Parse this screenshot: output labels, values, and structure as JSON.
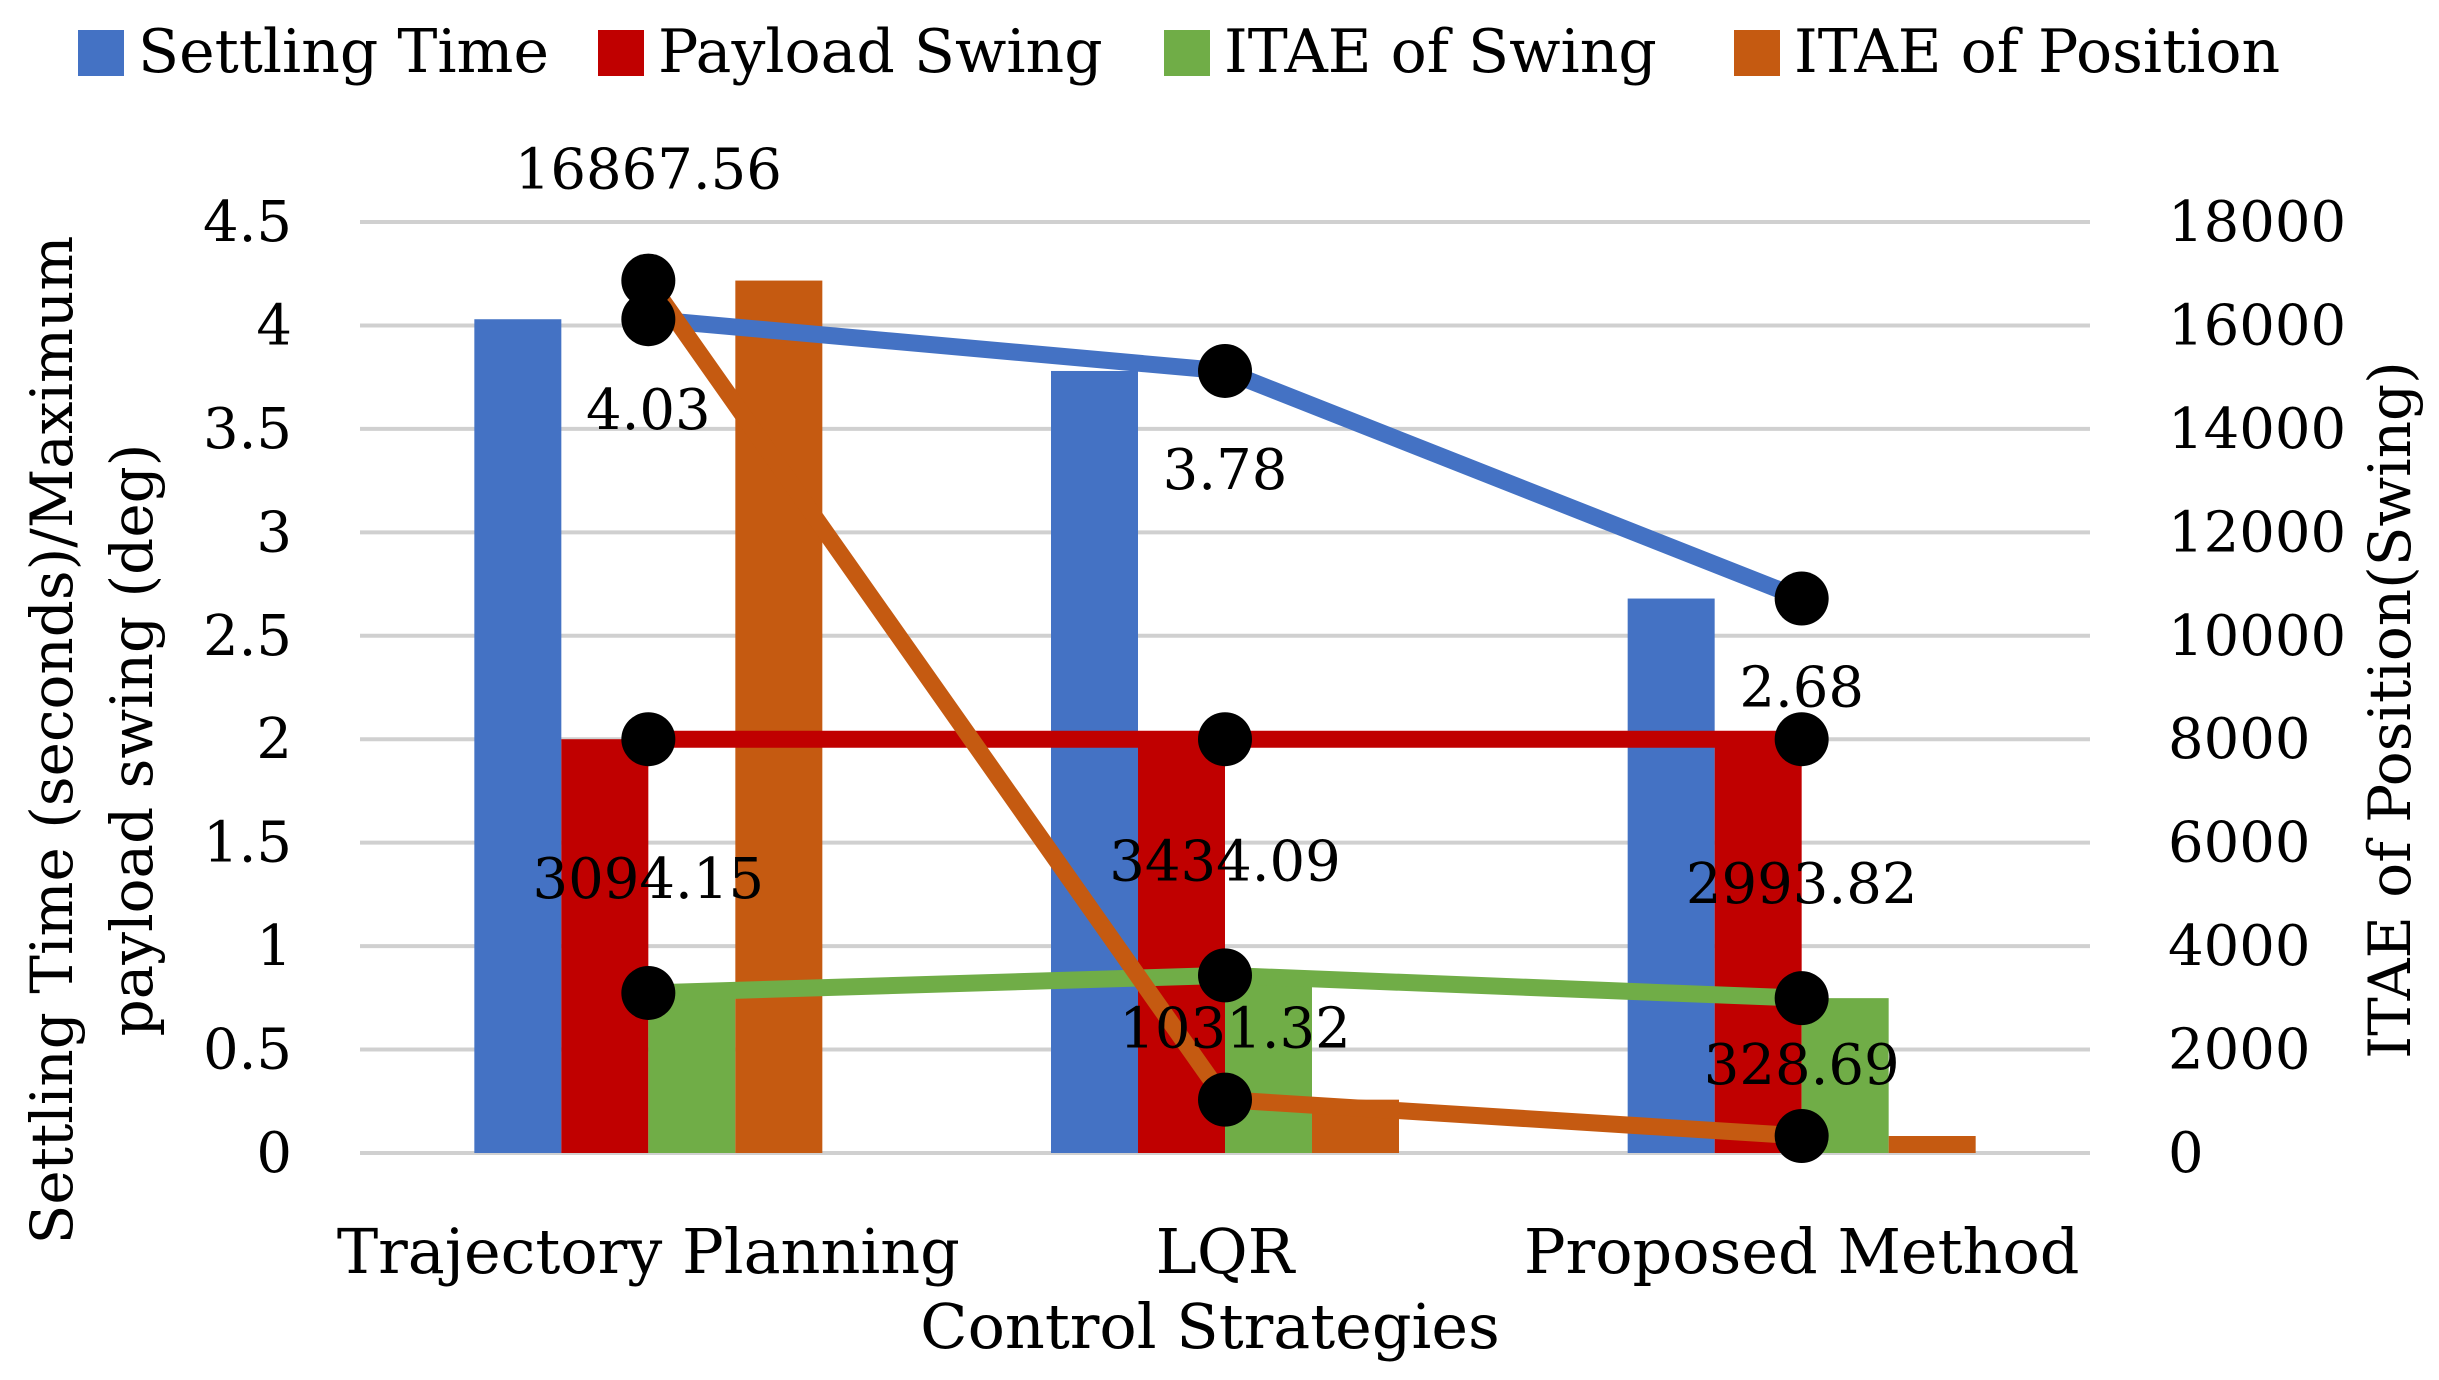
{
  "chart_data": {
    "type": "bar",
    "title": "",
    "xlabel": "Control  Strategies",
    "ylabel_left": [
      "Settling Time (seconds)/Maximum",
      "payload swing (deg)"
    ],
    "ylabel_right": "ITAE of Position(Swing)",
    "categories": [
      "Trajectory Planning",
      "LQR",
      "Proposed Method"
    ],
    "y_left": {
      "min": 0,
      "max": 4.5,
      "step": 0.5,
      "ticks": [
        "0",
        "0.5",
        "1",
        "1.5",
        "2",
        "2.5",
        "3",
        "3.5",
        "4",
        "4.5"
      ]
    },
    "y_right": {
      "min": 0,
      "max": 18000,
      "step": 2000,
      "ticks": [
        "0",
        "2000",
        "4000",
        "6000",
        "8000",
        "10000",
        "12000",
        "14000",
        "16000",
        "18000"
      ]
    },
    "grid": true,
    "legend_position": "top",
    "series": [
      {
        "name": "Settling Time",
        "color": "#4472C4",
        "axis": "left",
        "values": [
          4.03,
          3.78,
          2.68
        ],
        "labels": [
          "4.03",
          "3.78",
          "2.68"
        ]
      },
      {
        "name": "Payload Swing",
        "color": "#C00000",
        "axis": "left",
        "values": [
          2.0,
          2.0,
          2.0
        ],
        "labels": []
      },
      {
        "name": "ITAE of Swing",
        "color": "#70AD47",
        "axis": "right",
        "values": [
          3094.15,
          3434.09,
          2993.82
        ],
        "labels": [
          "3094.15",
          "3434.09",
          "2993.82"
        ]
      },
      {
        "name": "ITAE of Position",
        "color": "#C55A11",
        "axis": "right",
        "values": [
          16867.56,
          1031.32,
          328.69
        ],
        "labels": [
          "16867.56",
          "1031.32",
          "328.69"
        ]
      }
    ]
  }
}
